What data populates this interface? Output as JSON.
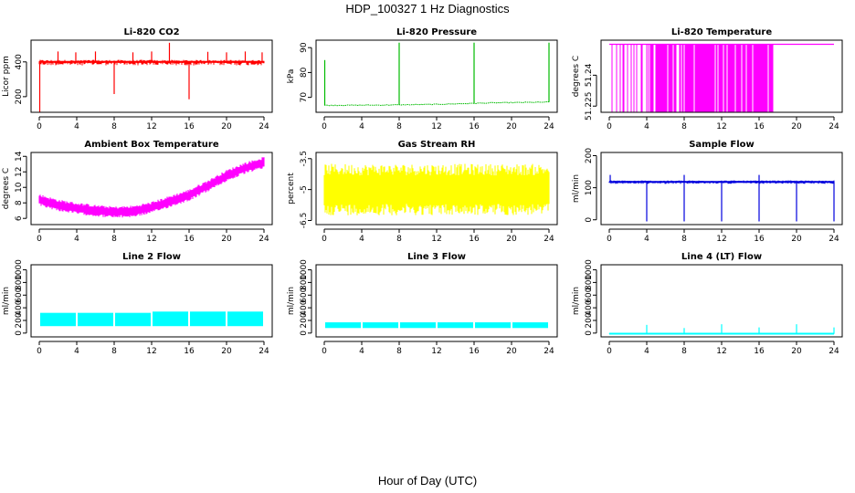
{
  "figure": {
    "title": "HDP_100327  1 Hz Diagnostics",
    "xlabel": "Hour of Day (UTC)"
  },
  "chart_data": [
    {
      "type": "line",
      "title": "Li-820 CO2",
      "ylabel": "Licor ppm",
      "color": "#ff0000",
      "xlim": [
        0,
        24
      ],
      "xticks": [
        0,
        4,
        8,
        12,
        16,
        20,
        24
      ],
      "ylim": [
        110,
        525
      ],
      "yticks": [
        200,
        400
      ],
      "style": "dense",
      "base": 400,
      "noise_lo": 20,
      "noise_hi": 12,
      "spikes": [
        {
          "x": 0.05,
          "y": 110
        },
        {
          "x": 2.0,
          "y": 460
        },
        {
          "x": 3.9,
          "y": 455
        },
        {
          "x": 6.0,
          "y": 460
        },
        {
          "x": 8.0,
          "y": 215
        },
        {
          "x": 10.0,
          "y": 455
        },
        {
          "x": 12.0,
          "y": 460
        },
        {
          "x": 13.9,
          "y": 510
        },
        {
          "x": 16.0,
          "y": 185
        },
        {
          "x": 18.0,
          "y": 458
        },
        {
          "x": 20.0,
          "y": 455
        },
        {
          "x": 22.0,
          "y": 460
        },
        {
          "x": 23.8,
          "y": 455
        }
      ]
    },
    {
      "type": "line",
      "title": "Li-820 Pressure",
      "ylabel": "kPa",
      "color": "#00bb00",
      "xlim": [
        0,
        24
      ],
      "xticks": [
        0,
        4,
        8,
        12,
        16,
        20,
        24
      ],
      "ylim": [
        64,
        93
      ],
      "yticks": [
        70,
        80,
        90
      ],
      "style": "trend",
      "points": [
        [
          0,
          66.8
        ],
        [
          6,
          66.9
        ],
        [
          12,
          67.2
        ],
        [
          18,
          67.8
        ],
        [
          24,
          68.1
        ]
      ],
      "spikes": [
        {
          "x": 0.05,
          "y": 85
        },
        {
          "x": 8.0,
          "y": 92
        },
        {
          "x": 16.0,
          "y": 92
        },
        {
          "x": 24.0,
          "y": 92
        }
      ]
    },
    {
      "type": "line",
      "title": "Li-820 Temperature",
      "ylabel": "degrees C",
      "color": "#ff00ff",
      "xlim": [
        0,
        24
      ],
      "xticks": [
        0,
        4,
        8,
        12,
        16,
        20,
        24
      ],
      "ylim": [
        51.222,
        51.257
      ],
      "yticks": [
        51.225,
        51.24
      ],
      "style": "level",
      "base": 51.255,
      "low": 51.222,
      "bursts": [
        [
          0.2,
          4.0,
          0.35
        ],
        [
          4.0,
          17.5,
          0.8
        ]
      ]
    },
    {
      "type": "line",
      "title": "Ambient Box Temperature",
      "ylabel": "degrees C",
      "color": "#ff00ff",
      "xlim": [
        0,
        24
      ],
      "xticks": [
        0,
        4,
        8,
        12,
        16,
        20,
        24
      ],
      "ylim": [
        5.2,
        14.5
      ],
      "yticks": [
        6,
        8,
        10,
        12,
        14
      ],
      "style": "band",
      "points": [
        [
          0,
          8.4
        ],
        [
          2,
          7.7
        ],
        [
          4,
          7.3
        ],
        [
          6,
          7.0
        ],
        [
          8,
          6.8
        ],
        [
          10,
          6.9
        ],
        [
          12,
          7.4
        ],
        [
          14,
          8.2
        ],
        [
          16,
          9.0
        ],
        [
          18,
          10.2
        ],
        [
          20,
          11.5
        ],
        [
          22,
          12.5
        ],
        [
          24,
          13.2
        ]
      ],
      "halfwidth": 0.75
    },
    {
      "type": "line",
      "title": "Gas Stream RH",
      "ylabel": "percent",
      "color": "#ffff00",
      "xlim": [
        0,
        24
      ],
      "xticks": [
        0,
        4,
        8,
        12,
        16,
        20,
        24
      ],
      "ylim": [
        -6.7,
        -3.2
      ],
      "yticks": [
        -3.5,
        -5,
        -6.5
      ],
      "style": "band",
      "points": [
        [
          0,
          -5.0
        ],
        [
          24,
          -5.0
        ]
      ],
      "halfwidth": 1.25
    },
    {
      "type": "line",
      "title": "Sample Flow",
      "ylabel": "ml/min",
      "color": "#0000dd",
      "xlim": [
        0,
        24
      ],
      "xticks": [
        0,
        4,
        8,
        12,
        16,
        20,
        24
      ],
      "ylim": [
        -15,
        210
      ],
      "yticks": [
        0,
        100,
        200
      ],
      "style": "dense",
      "base": 118,
      "noise_lo": 6,
      "noise_hi": 5,
      "spikes": [
        {
          "x": 0.1,
          "y": 140
        },
        {
          "x": 4.0,
          "y": -5
        },
        {
          "x": 8.0,
          "y": -5
        },
        {
          "x": 8.0,
          "y": 140
        },
        {
          "x": 12.0,
          "y": -5
        },
        {
          "x": 16.0,
          "y": -5
        },
        {
          "x": 16.0,
          "y": 140
        },
        {
          "x": 20.0,
          "y": -5
        },
        {
          "x": 24.0,
          "y": -5
        }
      ]
    },
    {
      "type": "line",
      "title": "Line 2 Flow",
      "ylabel": "ml/min",
      "color": "#00ffff",
      "xlim": [
        0,
        24
      ],
      "xticks": [
        0,
        4,
        8,
        12,
        16,
        20,
        24
      ],
      "ylim": [
        -60,
        1080
      ],
      "yticks": [
        0,
        200,
        400,
        600,
        800,
        1000
      ],
      "style": "blocks",
      "segments": [
        [
          0,
          4,
          110,
          320
        ],
        [
          4,
          8,
          110,
          320
        ],
        [
          8,
          12,
          110,
          320
        ],
        [
          12,
          16,
          110,
          340
        ],
        [
          16,
          20,
          110,
          340
        ],
        [
          20,
          24,
          110,
          340
        ]
      ]
    },
    {
      "type": "line",
      "title": "Line 3 Flow",
      "ylabel": "ml/min",
      "color": "#00ffff",
      "xlim": [
        0,
        24
      ],
      "xticks": [
        0,
        4,
        8,
        12,
        16,
        20,
        24
      ],
      "ylim": [
        -60,
        1080
      ],
      "yticks": [
        0,
        200,
        400,
        600,
        800,
        1000
      ],
      "style": "blocks",
      "segments": [
        [
          0,
          4,
          80,
          170
        ],
        [
          4,
          8,
          80,
          170
        ],
        [
          8,
          12,
          80,
          170
        ],
        [
          12,
          16,
          80,
          170
        ],
        [
          16,
          20,
          80,
          170
        ],
        [
          20,
          24,
          80,
          170
        ]
      ]
    },
    {
      "type": "line",
      "title": "Line 4 (LT) Flow",
      "ylabel": "ml/min",
      "color": "#00ffff",
      "xlim": [
        0,
        24
      ],
      "xticks": [
        0,
        4,
        8,
        12,
        16,
        20,
        24
      ],
      "ylim": [
        -60,
        1080
      ],
      "yticks": [
        0,
        200,
        400,
        600,
        800,
        1000
      ],
      "style": "dense",
      "base": -10,
      "noise_lo": 5,
      "noise_hi": 5,
      "spikes": [
        {
          "x": 4.0,
          "y": 130
        },
        {
          "x": 8.0,
          "y": 80
        },
        {
          "x": 12.0,
          "y": 140
        },
        {
          "x": 16.0,
          "y": 90
        },
        {
          "x": 20.0,
          "y": 140
        },
        {
          "x": 24.0,
          "y": 90
        }
      ]
    }
  ]
}
